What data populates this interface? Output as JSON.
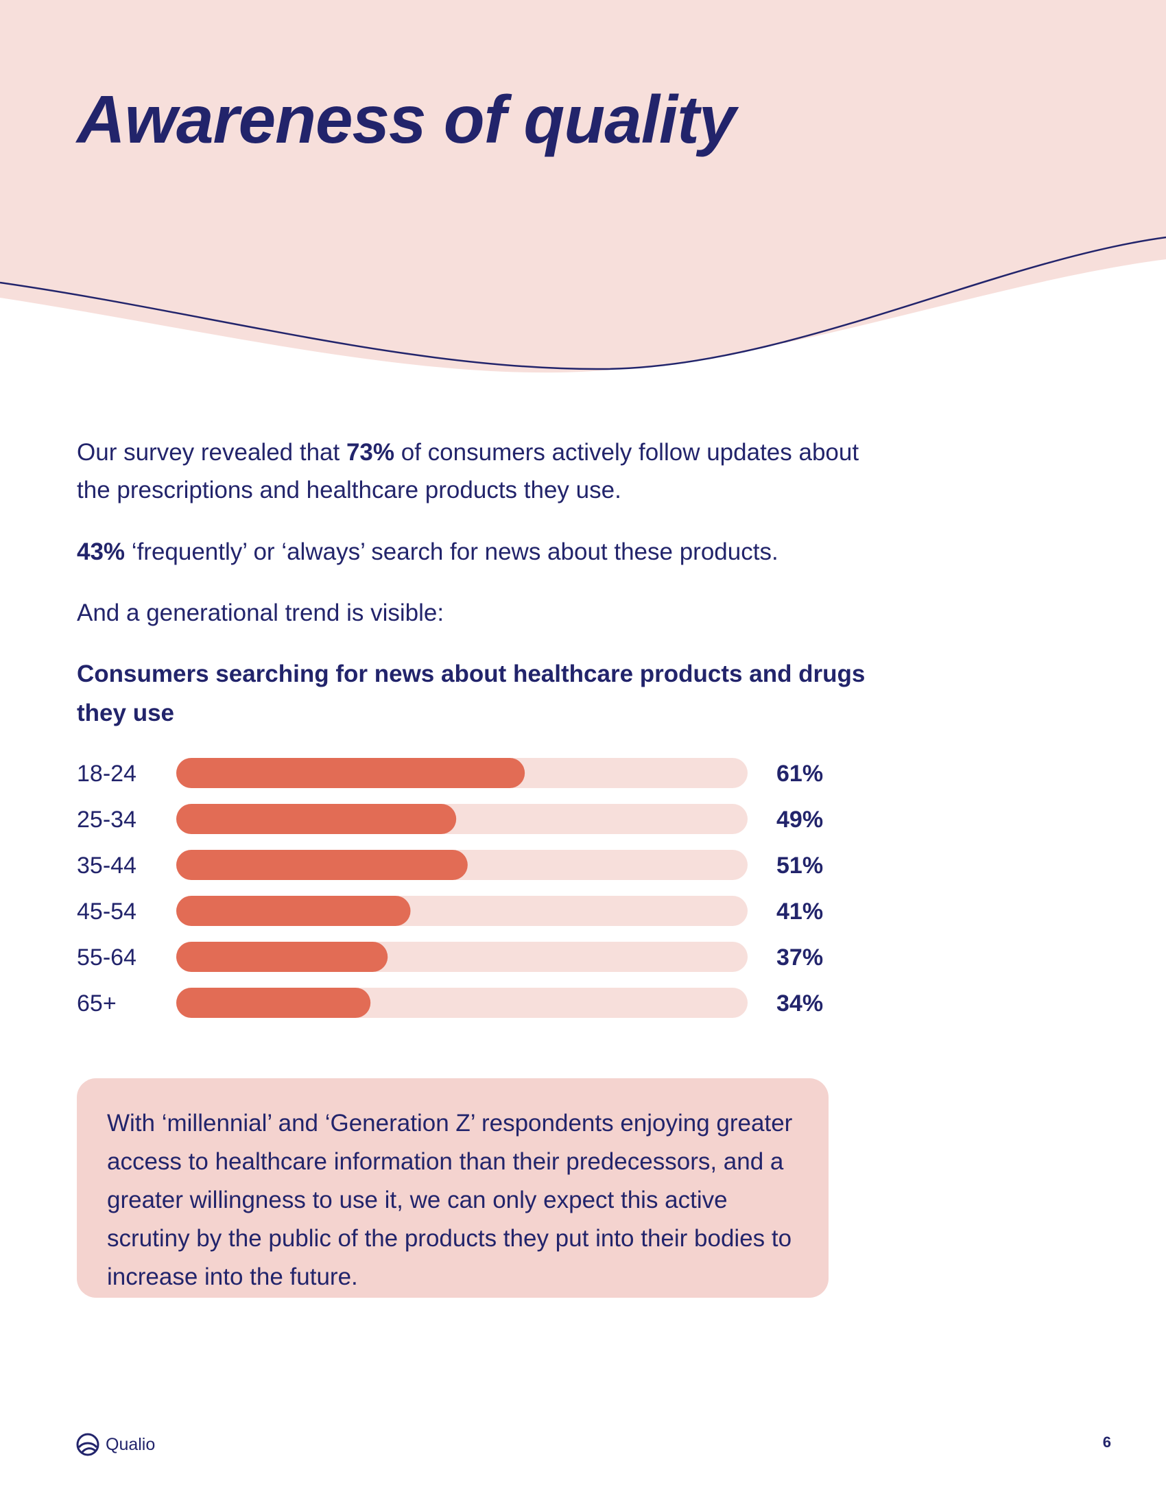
{
  "page": {
    "title": "Awareness of quality",
    "paragraphs": {
      "p1": {
        "before": "Our survey revealed that ",
        "highlight": "73%",
        "after": " of consumers actively follow updates about the prescriptions and healthcare products they use."
      },
      "p2": {
        "highlight": "43%",
        "after": " ‘frequently’ or ‘always’ search for news about these products."
      },
      "p3": "And a generational trend is visible:"
    },
    "callout": "With ‘millennial’ and ‘Generation Z’ respondents enjoying greater access to healthcare information than their predecessors, and a greater willingness to use it, we can only expect this active scrutiny by the public of the products they put into their bodies to increase into the future.",
    "footer": {
      "brand": "Qualio",
      "page_number": "6"
    }
  },
  "colors": {
    "navy": "#22246b",
    "header_pink": "#f7dfdb",
    "bar_fill": "#e26c55",
    "bar_track": "#f7dfdb",
    "callout_bg": "#f4d3cf"
  },
  "chart_data": {
    "type": "bar",
    "orientation": "horizontal",
    "title": "Consumers searching for news about healthcare products and drugs they use",
    "categories": [
      "18-24",
      "25-34",
      "35-44",
      "45-54",
      "55-64",
      "65+"
    ],
    "values": [
      61,
      49,
      51,
      41,
      37,
      34
    ],
    "value_labels": [
      "61%",
      "49%",
      "51%",
      "41%",
      "37%",
      "34%"
    ],
    "xlim": [
      0,
      100
    ],
    "unit": "%",
    "grid": false,
    "legend": "none"
  }
}
